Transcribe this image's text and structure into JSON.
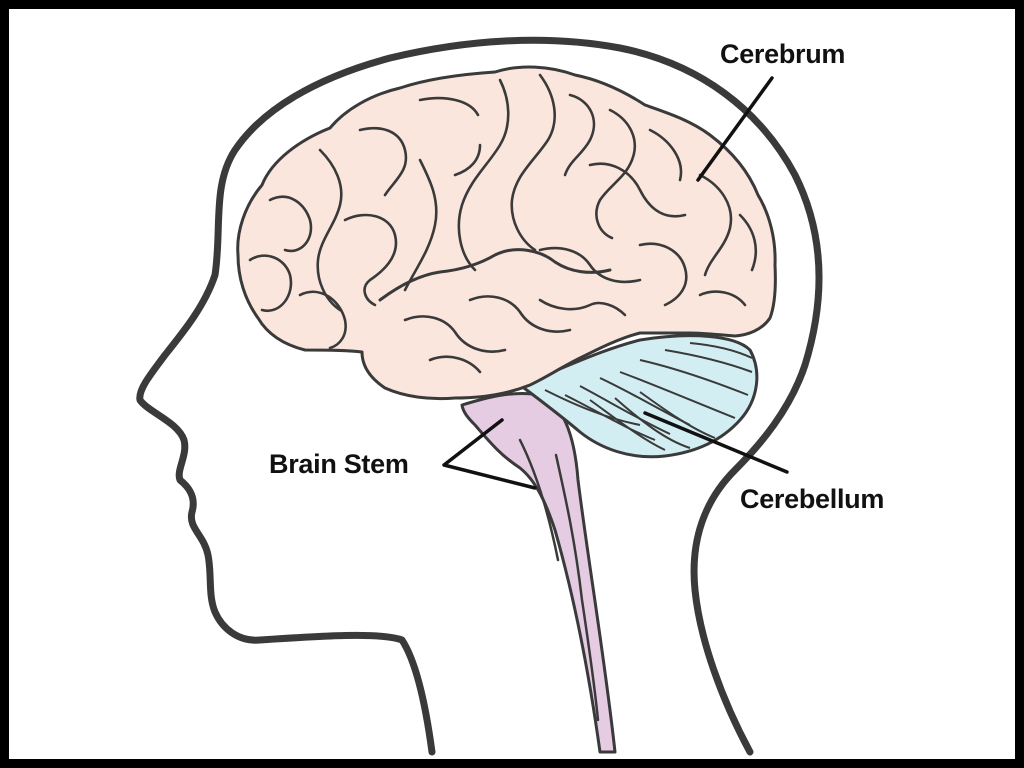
{
  "labels": {
    "cerebrum": "Cerebrum",
    "brain_stem": "Brain Stem",
    "cerebellum": "Cerebellum"
  },
  "colors": {
    "frame": "#000000",
    "background": "#ffffff",
    "outline": "#3a3a3a",
    "cerebrum_fill": "#fbe6dd",
    "cerebellum_fill": "#d3eef2",
    "brain_stem_fill": "#e5cce2"
  }
}
